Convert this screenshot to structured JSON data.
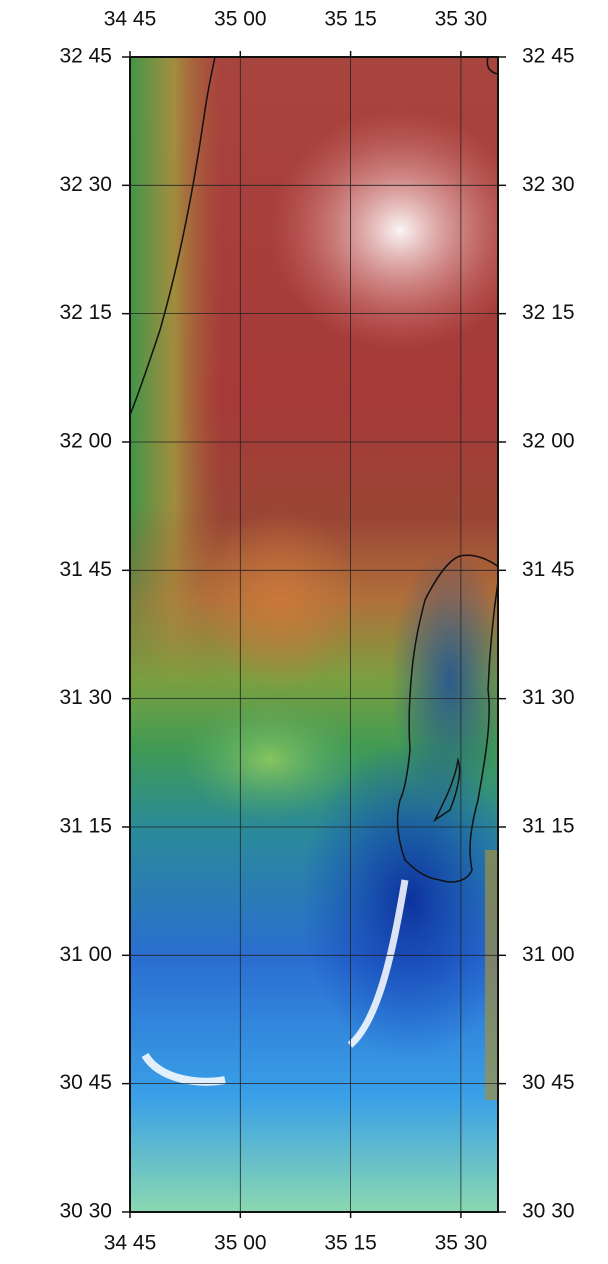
{
  "axes": {
    "top": [
      "34 45",
      "35 00",
      "35 15",
      "35 30"
    ],
    "bottom": [
      "34 45",
      "35 00",
      "35 15",
      "35 30"
    ],
    "left": [
      "32 45",
      "32 30",
      "32 15",
      "32 00",
      "31 45",
      "31 30",
      "31 15",
      "31 00",
      "30 45",
      "30 30"
    ],
    "right": [
      "32 45",
      "32 30",
      "32 15",
      "32 00",
      "31 45",
      "31 30",
      "31 15",
      "31 00",
      "30 45",
      "30 30"
    ]
  }
}
